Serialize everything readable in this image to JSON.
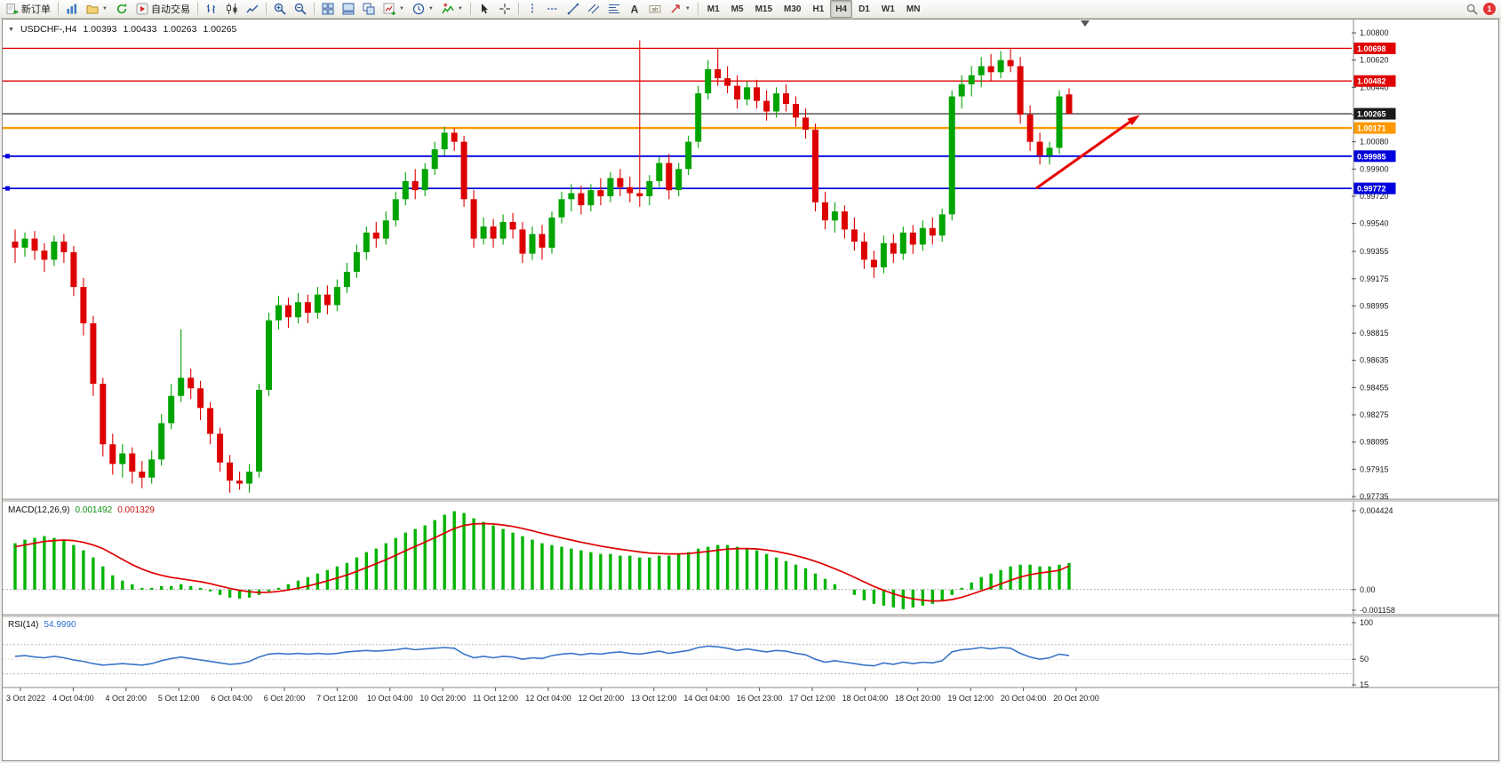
{
  "toolbar": {
    "notification_count": "1",
    "active_timeframe": "H4",
    "timeframes": [
      "M1",
      "M5",
      "M15",
      "M30",
      "H1",
      "H4",
      "D1",
      "W1",
      "MN"
    ],
    "items": [
      {
        "name": "new-order-button",
        "icon": "new-order",
        "label": "新订单"
      },
      {
        "sep": true
      },
      {
        "name": "charts-button",
        "icon": "charts"
      },
      {
        "name": "profiles-button",
        "icon": "profiles",
        "dropdown": true
      },
      {
        "name": "refresh-button",
        "icon": "refresh"
      },
      {
        "name": "autotrading-button",
        "icon": "autotrade",
        "label": "自动交易"
      },
      {
        "sep": true
      },
      {
        "name": "chart-bars-button",
        "icon": "chart-bars"
      },
      {
        "name": "chart-candles-button",
        "icon": "chart-candles"
      },
      {
        "name": "chart-line-button",
        "icon": "chart-line"
      },
      {
        "sep": true
      },
      {
        "name": "zoom-in-button",
        "icon": "zoom-in"
      },
      {
        "name": "zoom-out-button",
        "icon": "zoom-out"
      },
      {
        "sep": true
      },
      {
        "name": "tile-windows-button",
        "icon": "tile-windows"
      },
      {
        "name": "auto-arrange-button",
        "icon": "auto-arrange"
      },
      {
        "name": "cascade-button",
        "icon": "cascade-windows"
      },
      {
        "name": "new-chart-button",
        "icon": "new-chart",
        "dropdown": true
      },
      {
        "name": "periods-button",
        "icon": "periods",
        "dropdown": true
      },
      {
        "name": "indicators-button",
        "icon": "indicators",
        "dropdown": true
      },
      {
        "sep": true
      },
      {
        "name": "cursor-button",
        "icon": "cursor"
      },
      {
        "name": "crosshair-button",
        "icon": "crosshair"
      },
      {
        "sep": true
      },
      {
        "name": "vline-button",
        "icon": "vline"
      },
      {
        "name": "hline-button",
        "icon": "hline"
      },
      {
        "name": "trendline-button",
        "icon": "trendline"
      },
      {
        "name": "channel-button",
        "icon": "channel"
      },
      {
        "name": "fibonacci-button",
        "icon": "fibonacci"
      },
      {
        "name": "text-button",
        "icon": "text"
      },
      {
        "name": "text-label-button",
        "icon": "text-label"
      },
      {
        "name": "arrows-button",
        "icon": "arrows",
        "dropdown": true
      },
      {
        "sep": true
      }
    ]
  },
  "chart": {
    "title": "USDCHF-,H4"
  },
  "chart_data": {
    "type": "candlestick",
    "symbol": "USDCHF-",
    "timeframe": "H4",
    "current": {
      "open": "1.00393",
      "high": "1.00433",
      "low": "1.00263",
      "close": "1.00265"
    },
    "y_range": [
      0.97735,
      1.008
    ],
    "colors": {
      "up": "#00A400",
      "down": "#DD0000",
      "macd_hist": "#00B400",
      "macd_signal": "#E00000",
      "rsi": "#3A75C9"
    },
    "price_scale": [
      "1.00800",
      "1.00620",
      "1.00440",
      "1.00260",
      "1.00080",
      "0.99900",
      "0.99720",
      "0.99540",
      "0.99355",
      "0.99175",
      "0.98995",
      "0.98815",
      "0.98635",
      "0.98455",
      "0.98275",
      "0.98095",
      "0.97915",
      "0.97735"
    ],
    "hlines": [
      {
        "name": "resistance-line-1",
        "label": "1.00698",
        "price": 1.00698,
        "color": "#E00000",
        "width": 1.3,
        "tag": true,
        "handles": false
      },
      {
        "name": "resistance-line-2",
        "label": "1.00482",
        "price": 1.00482,
        "color": "#E00000",
        "width": 1.3,
        "tag": true,
        "handles": false
      },
      {
        "name": "current-price-line",
        "label": "1.00265",
        "price": 1.00265,
        "color": "#1a1a1a",
        "width": 1.1,
        "tag": true,
        "handles": false
      },
      {
        "name": "pivot-line",
        "label": "1.00171",
        "price": 1.00171,
        "color": "#FF9900",
        "width": 2.4,
        "tag": true,
        "handles": false
      },
      {
        "name": "support-line-1",
        "label": "0.99985",
        "price": 0.99985,
        "color": "#0000DD",
        "width": 1.8,
        "tag": true,
        "handles": true
      },
      {
        "name": "support-line-2",
        "label": "0.99772",
        "price": 0.99772,
        "color": "#0000DD",
        "width": 1.8,
        "tag": true,
        "handles": true
      }
    ],
    "arrow": {
      "name": "trend-arrow",
      "color": "#E80000",
      "x1_frac": 0.766,
      "price1": 0.99772,
      "x2_frac": 0.843,
      "price2": 1.00258,
      "width": 3
    },
    "candles": [
      [
        0.9942,
        0.995,
        0.9928,
        0.9938
      ],
      [
        0.9938,
        0.9948,
        0.9932,
        0.9944
      ],
      [
        0.9944,
        0.9949,
        0.993,
        0.9936
      ],
      [
        0.9936,
        0.9941,
        0.9922,
        0.993
      ],
      [
        0.993,
        0.9946,
        0.9926,
        0.9942
      ],
      [
        0.9942,
        0.9947,
        0.9928,
        0.9935
      ],
      [
        0.9935,
        0.9939,
        0.9906,
        0.9912
      ],
      [
        0.9912,
        0.9918,
        0.988,
        0.9888
      ],
      [
        0.9888,
        0.9893,
        0.984,
        0.9848
      ],
      [
        0.9848,
        0.9852,
        0.98,
        0.9808
      ],
      [
        0.9808,
        0.9815,
        0.9788,
        0.9795
      ],
      [
        0.9795,
        0.9808,
        0.9786,
        0.9802
      ],
      [
        0.9802,
        0.9806,
        0.9782,
        0.979
      ],
      [
        0.979,
        0.9797,
        0.9779,
        0.9786
      ],
      [
        0.9786,
        0.9804,
        0.9782,
        0.9798
      ],
      [
        0.9798,
        0.9828,
        0.9794,
        0.9822
      ],
      [
        0.9822,
        0.9848,
        0.9818,
        0.984
      ],
      [
        0.984,
        0.9884,
        0.9836,
        0.9852
      ],
      [
        0.9852,
        0.9858,
        0.9838,
        0.9845
      ],
      [
        0.9845,
        0.985,
        0.9824,
        0.9832
      ],
      [
        0.9832,
        0.9836,
        0.9808,
        0.9815
      ],
      [
        0.9815,
        0.9819,
        0.979,
        0.9796
      ],
      [
        0.9796,
        0.9801,
        0.9776,
        0.9784
      ],
      [
        0.9784,
        0.979,
        0.9778,
        0.9782
      ],
      [
        0.9782,
        0.9795,
        0.9776,
        0.979
      ],
      [
        0.979,
        0.9848,
        0.9786,
        0.9844
      ],
      [
        0.9844,
        0.9895,
        0.984,
        0.989
      ],
      [
        0.989,
        0.9906,
        0.9884,
        0.99
      ],
      [
        0.99,
        0.9905,
        0.9885,
        0.9892
      ],
      [
        0.9892,
        0.9908,
        0.9888,
        0.9902
      ],
      [
        0.9902,
        0.9907,
        0.9888,
        0.9895
      ],
      [
        0.9895,
        0.9912,
        0.9891,
        0.9907
      ],
      [
        0.9907,
        0.9913,
        0.9894,
        0.99
      ],
      [
        0.99,
        0.9917,
        0.9896,
        0.9912
      ],
      [
        0.9912,
        0.9928,
        0.9908,
        0.9922
      ],
      [
        0.9922,
        0.994,
        0.9918,
        0.9935
      ],
      [
        0.9935,
        0.9952,
        0.993,
        0.9948
      ],
      [
        0.9948,
        0.9955,
        0.9938,
        0.9944
      ],
      [
        0.9944,
        0.9962,
        0.994,
        0.9956
      ],
      [
        0.9956,
        0.9975,
        0.9952,
        0.997
      ],
      [
        0.997,
        0.9988,
        0.9966,
        0.9982
      ],
      [
        0.9982,
        0.999,
        0.997,
        0.9976
      ],
      [
        0.9976,
        0.9994,
        0.9972,
        0.999
      ],
      [
        0.999,
        1.0008,
        0.9986,
        1.0003
      ],
      [
        1.0003,
        1.0018,
        0.9999,
        1.0014
      ],
      [
        1.0014,
        1.0017,
        1.0002,
        1.0008
      ],
      [
        1.0008,
        1.0012,
        0.9965,
        0.997
      ],
      [
        0.997,
        0.9976,
        0.9938,
        0.9944
      ],
      [
        0.9944,
        0.9958,
        0.994,
        0.9952
      ],
      [
        0.9952,
        0.9957,
        0.9938,
        0.9944
      ],
      [
        0.9944,
        0.996,
        0.994,
        0.9955
      ],
      [
        0.9955,
        0.9961,
        0.9944,
        0.995
      ],
      [
        0.995,
        0.9955,
        0.9928,
        0.9934
      ],
      [
        0.9934,
        0.9952,
        0.993,
        0.9947
      ],
      [
        0.9947,
        0.9953,
        0.993,
        0.9938
      ],
      [
        0.9938,
        0.9962,
        0.9934,
        0.9958
      ],
      [
        0.9958,
        0.9975,
        0.9954,
        0.997
      ],
      [
        0.997,
        0.998,
        0.9962,
        0.9974
      ],
      [
        0.9974,
        0.9979,
        0.996,
        0.9966
      ],
      [
        0.9966,
        0.998,
        0.9962,
        0.9976
      ],
      [
        0.9976,
        0.9984,
        0.9966,
        0.9972
      ],
      [
        0.9972,
        0.9988,
        0.9968,
        0.9984
      ],
      [
        0.9984,
        0.999,
        0.9972,
        0.9978
      ],
      [
        0.9978,
        0.9985,
        0.9968,
        0.9974
      ],
      [
        0.9974,
        1.0075,
        0.9965,
        0.9972
      ],
      [
        0.9972,
        0.9986,
        0.9966,
        0.9982
      ],
      [
        0.9982,
        0.9998,
        0.9978,
        0.9994
      ],
      [
        0.9994,
        1.0,
        0.997,
        0.9976
      ],
      [
        0.9976,
        0.9994,
        0.9972,
        0.999
      ],
      [
        0.999,
        1.0012,
        0.9986,
        1.0008
      ],
      [
        1.0008,
        1.0045,
        1.0004,
        1.004
      ],
      [
        1.004,
        1.0062,
        1.0036,
        1.0056
      ],
      [
        1.0056,
        1.007,
        1.0045,
        1.005
      ],
      [
        1.005,
        1.0058,
        1.004,
        1.0045
      ],
      [
        1.0045,
        1.0052,
        1.003,
        1.0036
      ],
      [
        1.0036,
        1.0048,
        1.0032,
        1.0044
      ],
      [
        1.0044,
        1.0049,
        1.003,
        1.0035
      ],
      [
        1.0035,
        1.0042,
        1.0022,
        1.0028
      ],
      [
        1.0028,
        1.0044,
        1.0024,
        1.004
      ],
      [
        1.004,
        1.0046,
        1.0028,
        1.0033
      ],
      [
        1.0033,
        1.0038,
        1.0018,
        1.0024
      ],
      [
        1.0024,
        1.003,
        1.001,
        1.0016
      ],
      [
        1.0016,
        1.002,
        0.9962,
        0.9968
      ],
      [
        0.9968,
        0.9975,
        0.995,
        0.9956
      ],
      [
        0.9956,
        0.9968,
        0.9948,
        0.9962
      ],
      [
        0.9962,
        0.9966,
        0.9944,
        0.995
      ],
      [
        0.995,
        0.9958,
        0.9936,
        0.9942
      ],
      [
        0.9942,
        0.9948,
        0.9924,
        0.993
      ],
      [
        0.993,
        0.9936,
        0.9918,
        0.9925
      ],
      [
        0.9925,
        0.9946,
        0.9921,
        0.9941
      ],
      [
        0.9941,
        0.9947,
        0.9928,
        0.9934
      ],
      [
        0.9934,
        0.9952,
        0.993,
        0.9948
      ],
      [
        0.9948,
        0.9953,
        0.9934,
        0.994
      ],
      [
        0.994,
        0.9956,
        0.9936,
        0.9951
      ],
      [
        0.9951,
        0.9958,
        0.994,
        0.9946
      ],
      [
        0.9946,
        0.9964,
        0.9942,
        0.996
      ],
      [
        0.996,
        1.0042,
        0.9956,
        1.0038
      ],
      [
        1.0038,
        1.0052,
        1.003,
        1.0046
      ],
      [
        1.0046,
        1.0058,
        1.0038,
        1.0052
      ],
      [
        1.0052,
        1.0064,
        1.0044,
        1.0058
      ],
      [
        1.0058,
        1.0066,
        1.0048,
        1.0054
      ],
      [
        1.0054,
        1.0068,
        1.005,
        1.0062
      ],
      [
        1.0062,
        1.007,
        1.0054,
        1.0058
      ],
      [
        1.0058,
        1.0064,
        1.002,
        1.0026
      ],
      [
        1.0026,
        1.0032,
        1.0002,
        1.0008
      ],
      [
        1.0008,
        1.0014,
        0.9993,
        0.9999
      ],
      [
        0.9999,
        1.0008,
        0.9993,
        1.0004
      ],
      [
        1.0004,
        1.0042,
        1.0,
        1.0038
      ],
      [
        1.00393,
        1.00433,
        1.00263,
        1.00265
      ]
    ],
    "macd": {
      "name": "MACD(12,26,9)",
      "value_main": "0.001492",
      "value_signal": "0.001329",
      "range": [
        -0.001158,
        0.004424
      ],
      "scale_labels": [
        {
          "text": "0.004424",
          "value": 0.004424
        },
        {
          "text": "0.00",
          "value": 0
        },
        {
          "text": "-0.001158",
          "value": -0.001158
        }
      ],
      "histogram": [
        0.0026,
        0.0028,
        0.0029,
        0.003,
        0.0029,
        0.0028,
        0.0025,
        0.0022,
        0.0018,
        0.0013,
        0.0008,
        0.0005,
        0.0003,
        0.0001,
        0.0001,
        0.0002,
        0.0002,
        0.0003,
        0.0002,
        0.0001,
        -0.0001,
        -0.0003,
        -0.00045,
        -0.0005,
        -0.00045,
        -0.0003,
        -0.0001,
        0.0001,
        0.0003,
        0.0005,
        0.0007,
        0.0009,
        0.0011,
        0.0013,
        0.0015,
        0.0018,
        0.0021,
        0.0023,
        0.0026,
        0.0029,
        0.0032,
        0.0034,
        0.0036,
        0.0039,
        0.0042,
        0.0044,
        0.0043,
        0.004,
        0.0038,
        0.0036,
        0.0034,
        0.0032,
        0.003,
        0.0028,
        0.0026,
        0.0025,
        0.0024,
        0.0023,
        0.0022,
        0.0021,
        0.002,
        0.002,
        0.0019,
        0.0019,
        0.0018,
        0.0018,
        0.0019,
        0.0019,
        0.002,
        0.0021,
        0.0023,
        0.0024,
        0.0025,
        0.0025,
        0.0024,
        0.0023,
        0.0022,
        0.002,
        0.0018,
        0.0016,
        0.0014,
        0.0012,
        0.0009,
        0.0006,
        0.0003,
        0.0,
        -0.0003,
        -0.0006,
        -0.0008,
        -0.0009,
        -0.001,
        -0.0011,
        -0.001,
        -0.0009,
        -0.0008,
        -0.0006,
        -0.0003,
        0.0001,
        0.0004,
        0.0007,
        0.0009,
        0.0011,
        0.0013,
        0.0014,
        0.0014,
        0.0013,
        0.0013,
        0.0014,
        0.001492
      ],
      "signal": [
        0.0024,
        0.0025,
        0.0026,
        0.0027,
        0.00275,
        0.00278,
        0.00275,
        0.00265,
        0.0025,
        0.0023,
        0.002,
        0.0017,
        0.0014,
        0.00115,
        0.00095,
        0.0008,
        0.00068,
        0.0006,
        0.00052,
        0.00044,
        0.00033,
        0.0002,
        7e-05,
        -4e-05,
        -0.00012,
        -0.00016,
        -0.00015,
        -0.0001,
        -2e-05,
        8e-05,
        0.0002,
        0.00034,
        0.00049,
        0.00065,
        0.00082,
        0.00102,
        0.00124,
        0.00145,
        0.00168,
        0.00192,
        0.00218,
        0.00242,
        0.00266,
        0.00291,
        0.00317,
        0.00342,
        0.0036,
        0.00368,
        0.0037,
        0.00368,
        0.00362,
        0.00354,
        0.00343,
        0.0033,
        0.00316,
        0.00303,
        0.0029,
        0.00278,
        0.00266,
        0.00255,
        0.00244,
        0.00235,
        0.00226,
        0.00219,
        0.00211,
        0.00205,
        0.00202,
        0.002,
        0.002,
        0.00202,
        0.00208,
        0.00214,
        0.00221,
        0.00227,
        0.0023,
        0.0023,
        0.00228,
        0.00222,
        0.00214,
        0.00203,
        0.0019,
        0.00176,
        0.00159,
        0.00139,
        0.00117,
        0.00094,
        0.00069,
        0.00043,
        0.00018,
        -4e-05,
        -0.00023,
        -0.0004,
        -0.00052,
        -0.0006,
        -0.00064,
        -0.00063,
        -0.00056,
        -0.00043,
        -0.00026,
        -7e-05,
        0.00012,
        0.00032,
        0.00052,
        0.0007,
        0.00084,
        0.00093,
        0.001,
        0.00108,
        0.001329
      ]
    },
    "rsi": {
      "name": "RSI(14)",
      "value": "54.9990",
      "range": [
        15,
        100
      ],
      "levels": [
        70,
        30
      ],
      "scale_labels": [
        {
          "text": "100",
          "value": 100
        },
        {
          "text": "50",
          "value": 50
        },
        {
          "text": "15",
          "value": 15
        }
      ],
      "values": [
        54,
        55,
        53,
        52,
        54,
        52,
        49,
        47,
        44,
        42,
        43,
        44,
        43,
        42,
        44,
        48,
        51,
        53,
        51,
        49,
        47,
        45,
        43,
        44,
        47,
        53,
        57,
        58,
        57,
        58,
        57,
        58,
        57,
        58,
        60,
        61,
        62,
        61,
        62,
        63,
        65,
        63,
        64,
        65,
        66,
        65,
        57,
        52,
        54,
        52,
        54,
        53,
        50,
        52,
        51,
        55,
        57,
        58,
        56,
        58,
        57,
        59,
        60,
        58,
        57,
        59,
        61,
        58,
        60,
        62,
        66,
        68,
        67,
        65,
        62,
        64,
        62,
        60,
        62,
        61,
        58,
        56,
        50,
        46,
        48,
        46,
        44,
        42,
        41,
        45,
        43,
        46,
        44,
        46,
        45,
        48,
        60,
        63,
        64,
        66,
        64,
        66,
        65,
        58,
        53,
        50,
        52,
        57,
        54.999
      ]
    },
    "time_labels": [
      "3 Oct 2022",
      "4 Oct 04:00",
      "4 Oct 20:00",
      "5 Oct 12:00",
      "6 Oct 04:00",
      "6 Oct 20:00",
      "7 Oct 12:00",
      "10 Oct 04:00",
      "10 Oct 20:00",
      "11 Oct 12:00",
      "12 Oct 04:00",
      "12 Oct 20:00",
      "13 Oct 12:00",
      "14 Oct 04:00",
      "16 Oct 23:00",
      "17 Oct 12:00",
      "18 Oct 04:00",
      "18 Oct 20:00",
      "19 Oct 12:00",
      "20 Oct 04:00",
      "20 Oct 20:00"
    ]
  }
}
